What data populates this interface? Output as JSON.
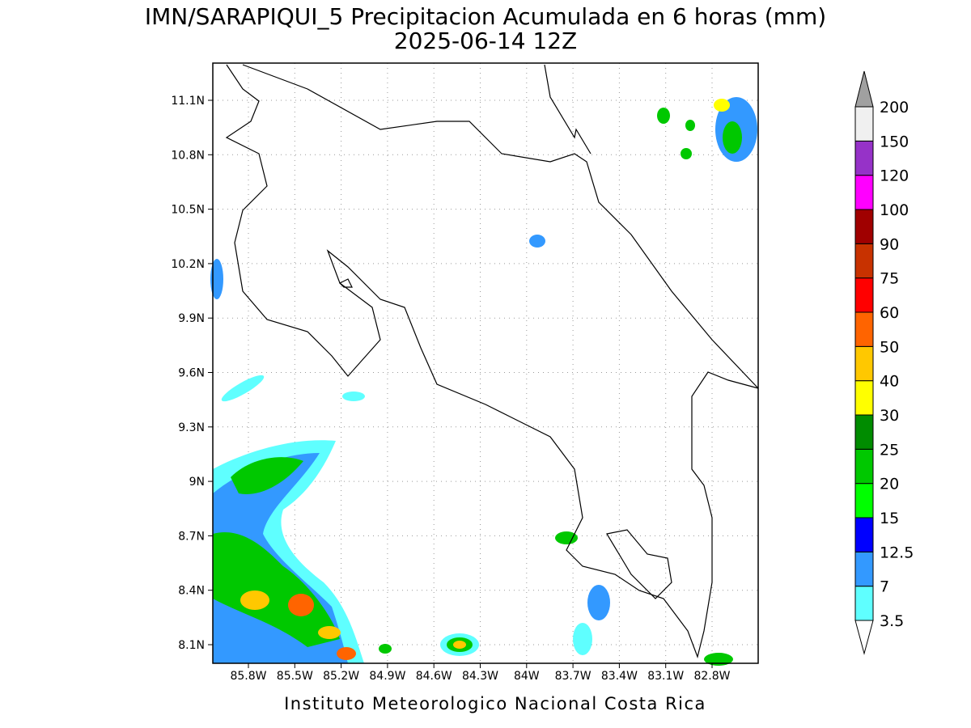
{
  "header": {
    "title": "IMN/SARAPIQUI_5 Precipitacion Acumulada en 6 horas (mm)",
    "subtitle": "2025-06-14 12Z"
  },
  "map": {
    "lon_ticks": [
      "85.8W",
      "85.5W",
      "85.2W",
      "84.9W",
      "84.6W",
      "84.3W",
      "84W",
      "83.7W",
      "83.4W",
      "83.1W",
      "82.8W"
    ],
    "lat_ticks": [
      "11.1N",
      "10.8N",
      "10.5N",
      "10.2N",
      "9.9N",
      "9.6N",
      "9.3N",
      "9N",
      "8.7N",
      "8.4N",
      "8.1N"
    ]
  },
  "colorbar": {
    "levels": [
      "3.5",
      "7",
      "12.5",
      "15",
      "20",
      "25",
      "30",
      "40",
      "50",
      "60",
      "75",
      "90",
      "100",
      "120",
      "150",
      "200"
    ],
    "colors": [
      "#5fffff",
      "#3399ff",
      "#0000ff",
      "#00ff00",
      "#00c800",
      "#008c00",
      "#ffff00",
      "#ffc800",
      "#ff6400",
      "#ff0000",
      "#c83200",
      "#a00000",
      "#ff00ff",
      "#9632c8",
      "#f0f0f0"
    ],
    "low_color": "#ffffff",
    "high_color": "#a0a0a0"
  },
  "footer": "Instituto Meteorologico Nacional Costa Rica"
}
